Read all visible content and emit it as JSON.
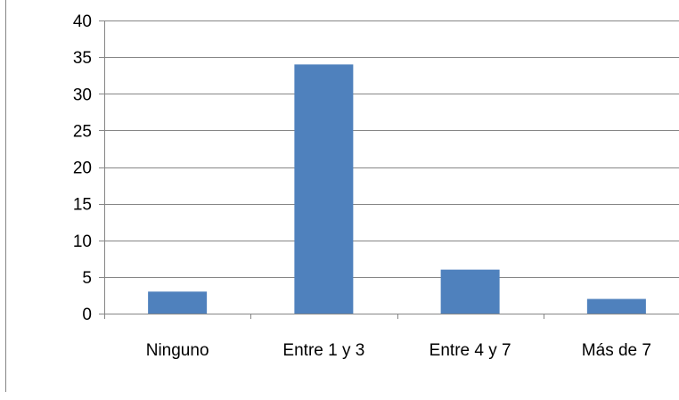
{
  "chart_data": {
    "type": "bar",
    "categories": [
      "Ninguno",
      "Entre 1 y 3",
      "Entre 4 y 7",
      "Más de 7"
    ],
    "values": [
      3,
      34,
      6,
      2
    ],
    "title": "",
    "xlabel": "",
    "ylabel": "",
    "ylim": [
      0,
      40
    ],
    "yticks": [
      0,
      5,
      10,
      15,
      20,
      25,
      30,
      35,
      40
    ],
    "grid": true,
    "legend": "none",
    "colors": {
      "bar": "#4F81BD",
      "grid": "#868686",
      "axis": "#868686",
      "frame": "#868686",
      "text": "#000000"
    }
  }
}
